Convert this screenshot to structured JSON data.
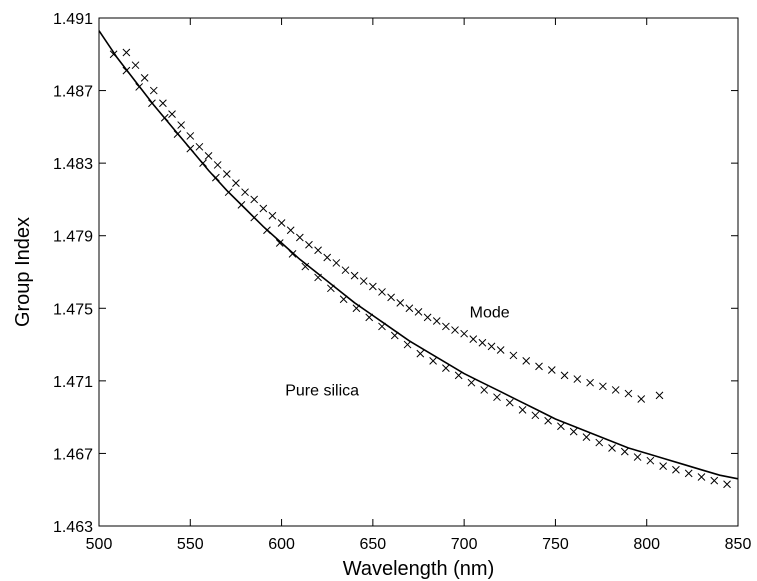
{
  "chart_data": {
    "type": "line",
    "title": "",
    "xlabel": "Wavelength (nm)",
    "ylabel": "Group Index",
    "xlim": [
      500,
      850
    ],
    "ylim": [
      1.463,
      1.491
    ],
    "xticks": [
      500,
      550,
      600,
      650,
      700,
      750,
      800,
      850
    ],
    "yticks": [
      1.463,
      1.467,
      1.471,
      1.475,
      1.479,
      1.483,
      1.487,
      1.491
    ],
    "xtick_labels": [
      "500",
      "550",
      "600",
      "650",
      "700",
      "750",
      "800",
      "850"
    ],
    "ytick_labels": [
      "1.463",
      "1.467",
      "1.471",
      "1.475",
      "1.479",
      "1.483",
      "1.487",
      "1.491"
    ],
    "grid": false,
    "legend": "none",
    "annotations": [
      {
        "text": "Mode",
        "x": 703,
        "y": 1.4745
      },
      {
        "text": "Pure silica",
        "x": 602,
        "y": 1.4702
      }
    ],
    "series": [
      {
        "style": "line",
        "color": "#000000",
        "x": [
          500,
          510,
          520,
          530,
          540,
          550,
          560,
          570,
          580,
          590,
          600,
          610,
          620,
          630,
          640,
          650,
          660,
          670,
          680,
          690,
          700,
          710,
          720,
          730,
          740,
          750,
          760,
          770,
          780,
          790,
          800,
          810,
          820,
          830,
          840,
          850
        ],
        "values": [
          1.4903,
          1.4888,
          1.4875,
          1.4862,
          1.485,
          1.4838,
          1.4826,
          1.4815,
          1.4805,
          1.4795,
          1.4786,
          1.4777,
          1.4769,
          1.4761,
          1.4753,
          1.4746,
          1.4739,
          1.4732,
          1.4726,
          1.472,
          1.4714,
          1.4709,
          1.4704,
          1.4699,
          1.4694,
          1.4689,
          1.4685,
          1.4681,
          1.4677,
          1.4673,
          1.467,
          1.4667,
          1.4664,
          1.4661,
          1.4658,
          1.4656
        ]
      },
      {
        "style": "markers-x",
        "color": "#000000",
        "x": [
          508,
          515,
          522,
          529,
          536,
          543,
          550,
          557,
          564,
          571,
          578,
          585,
          592,
          599,
          606,
          613,
          620,
          627,
          634,
          641,
          648,
          655,
          662,
          669,
          676,
          683,
          690,
          697,
          704,
          711,
          718,
          725,
          732,
          739,
          746,
          753,
          760,
          767,
          774,
          781,
          788,
          795,
          802,
          809,
          816,
          823,
          830,
          837,
          844,
          851
        ],
        "values": [
          1.489,
          1.4881,
          1.4872,
          1.4863,
          1.4855,
          1.4846,
          1.4838,
          1.483,
          1.4822,
          1.4814,
          1.4807,
          1.48,
          1.4793,
          1.4786,
          1.478,
          1.4773,
          1.4767,
          1.4761,
          1.4755,
          1.475,
          1.4745,
          1.474,
          1.4735,
          1.473,
          1.4725,
          1.4721,
          1.4717,
          1.4713,
          1.4709,
          1.4705,
          1.4701,
          1.4698,
          1.4694,
          1.4691,
          1.4688,
          1.4685,
          1.4682,
          1.4679,
          1.4676,
          1.4673,
          1.4671,
          1.4668,
          1.4666,
          1.4663,
          1.4661,
          1.4659,
          1.4657,
          1.4655,
          1.4653,
          1.4651
        ]
      },
      {
        "style": "markers-x",
        "color": "#000000",
        "x": [
          515,
          520,
          525,
          530,
          535,
          540,
          545,
          550,
          555,
          560,
          565,
          570,
          575,
          580,
          585,
          590,
          595,
          600,
          605,
          610,
          615,
          620,
          625,
          630,
          635,
          640,
          645,
          650,
          655,
          660,
          665,
          670,
          675,
          680,
          685,
          690,
          695,
          700,
          705,
          710,
          715,
          720,
          727,
          734,
          741,
          748,
          755,
          762,
          769,
          776,
          783,
          790,
          797,
          807
        ],
        "values": [
          1.4891,
          1.4884,
          1.4877,
          1.487,
          1.4863,
          1.4857,
          1.4851,
          1.4845,
          1.4839,
          1.4834,
          1.4829,
          1.4824,
          1.4819,
          1.4814,
          1.481,
          1.4805,
          1.4801,
          1.4797,
          1.4793,
          1.4789,
          1.4785,
          1.4782,
          1.4778,
          1.4775,
          1.4771,
          1.4768,
          1.4765,
          1.4762,
          1.4759,
          1.4756,
          1.4753,
          1.475,
          1.4748,
          1.4745,
          1.4743,
          1.474,
          1.4738,
          1.4736,
          1.4733,
          1.4731,
          1.4729,
          1.4727,
          1.4724,
          1.4721,
          1.4718,
          1.4716,
          1.4713,
          1.4711,
          1.4709,
          1.4707,
          1.4705,
          1.4703,
          1.47,
          1.4702
        ]
      }
    ]
  }
}
